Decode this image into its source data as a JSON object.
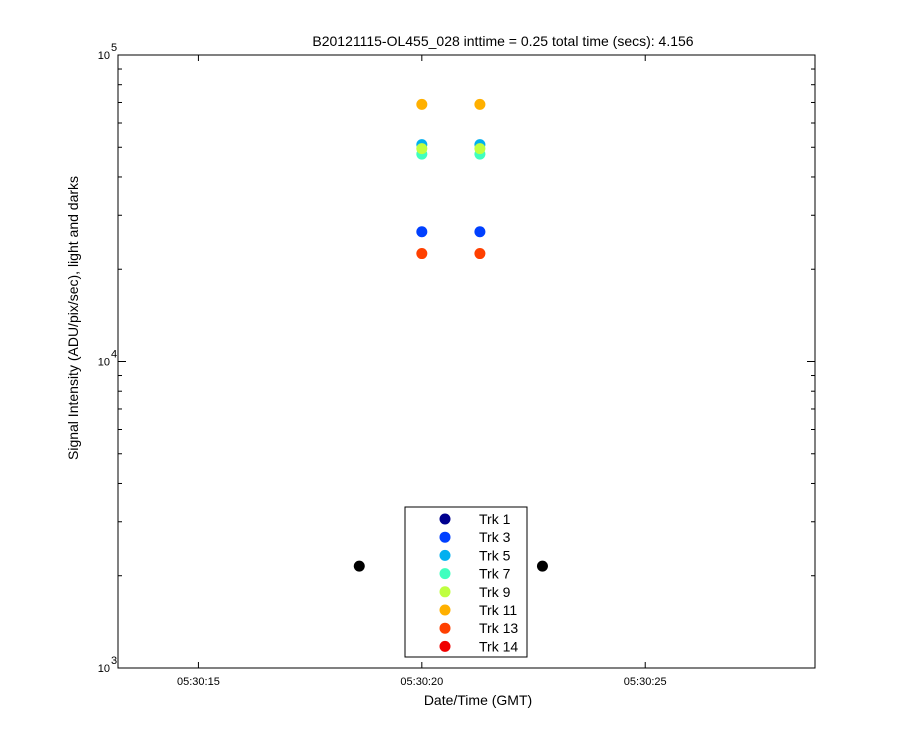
{
  "chart_data": {
    "type": "scatter",
    "title": "B20121115-OL455_028 inttime = 0.25 total time (secs): 4.156",
    "xlabel": "Date/Time (GMT)",
    "ylabel": "Signal Intensity (ADU/pix/sec), light and darks",
    "y_scale": "log",
    "ylim": [
      1000,
      100000
    ],
    "xlim": [
      "05:30:13.2",
      "05:30:28.8"
    ],
    "x_ticks": [
      "05:30:15",
      "05:30:20",
      "05:30:25"
    ],
    "y_ticks": [
      {
        "value": 1000,
        "base": "10",
        "exp": "3"
      },
      {
        "value": 10000,
        "base": "10",
        "exp": "4"
      },
      {
        "value": 100000,
        "base": "10",
        "exp": "5"
      }
    ],
    "grid": false,
    "legend_position": "bottom-center",
    "series": [
      {
        "name": "Trk 1",
        "color": "#00008f",
        "x": [],
        "y": []
      },
      {
        "name": "Trk 3",
        "color": "#0040ff",
        "x": [
          "05:30:20.0",
          "05:30:21.3"
        ],
        "y": [
          26500,
          26500
        ]
      },
      {
        "name": "Trk 5",
        "color": "#00b0f0",
        "x": [
          "05:30:20.0",
          "05:30:21.3"
        ],
        "y": [
          51000,
          51000
        ]
      },
      {
        "name": "Trk 7",
        "color": "#40ffbf",
        "x": [
          "05:30:20.0",
          "05:30:21.3"
        ],
        "y": [
          47500,
          47500
        ]
      },
      {
        "name": "Trk 9",
        "color": "#bfff40",
        "x": [
          "05:30:20.0",
          "05:30:21.3"
        ],
        "y": [
          49500,
          49500
        ]
      },
      {
        "name": "Trk 11",
        "color": "#ffb000",
        "x": [
          "05:30:20.0",
          "05:30:21.3"
        ],
        "y": [
          69000,
          69000
        ]
      },
      {
        "name": "Trk 13",
        "color": "#ff4000",
        "x": [
          "05:30:20.0",
          "05:30:21.3"
        ],
        "y": [
          22500,
          22500
        ]
      },
      {
        "name": "Trk 14",
        "color": "#f00000",
        "x": [],
        "y": []
      }
    ],
    "darks": {
      "color": "#000000",
      "x": [
        "05:30:18.6",
        "05:30:22.7"
      ],
      "y": [
        2150,
        2150
      ]
    }
  }
}
